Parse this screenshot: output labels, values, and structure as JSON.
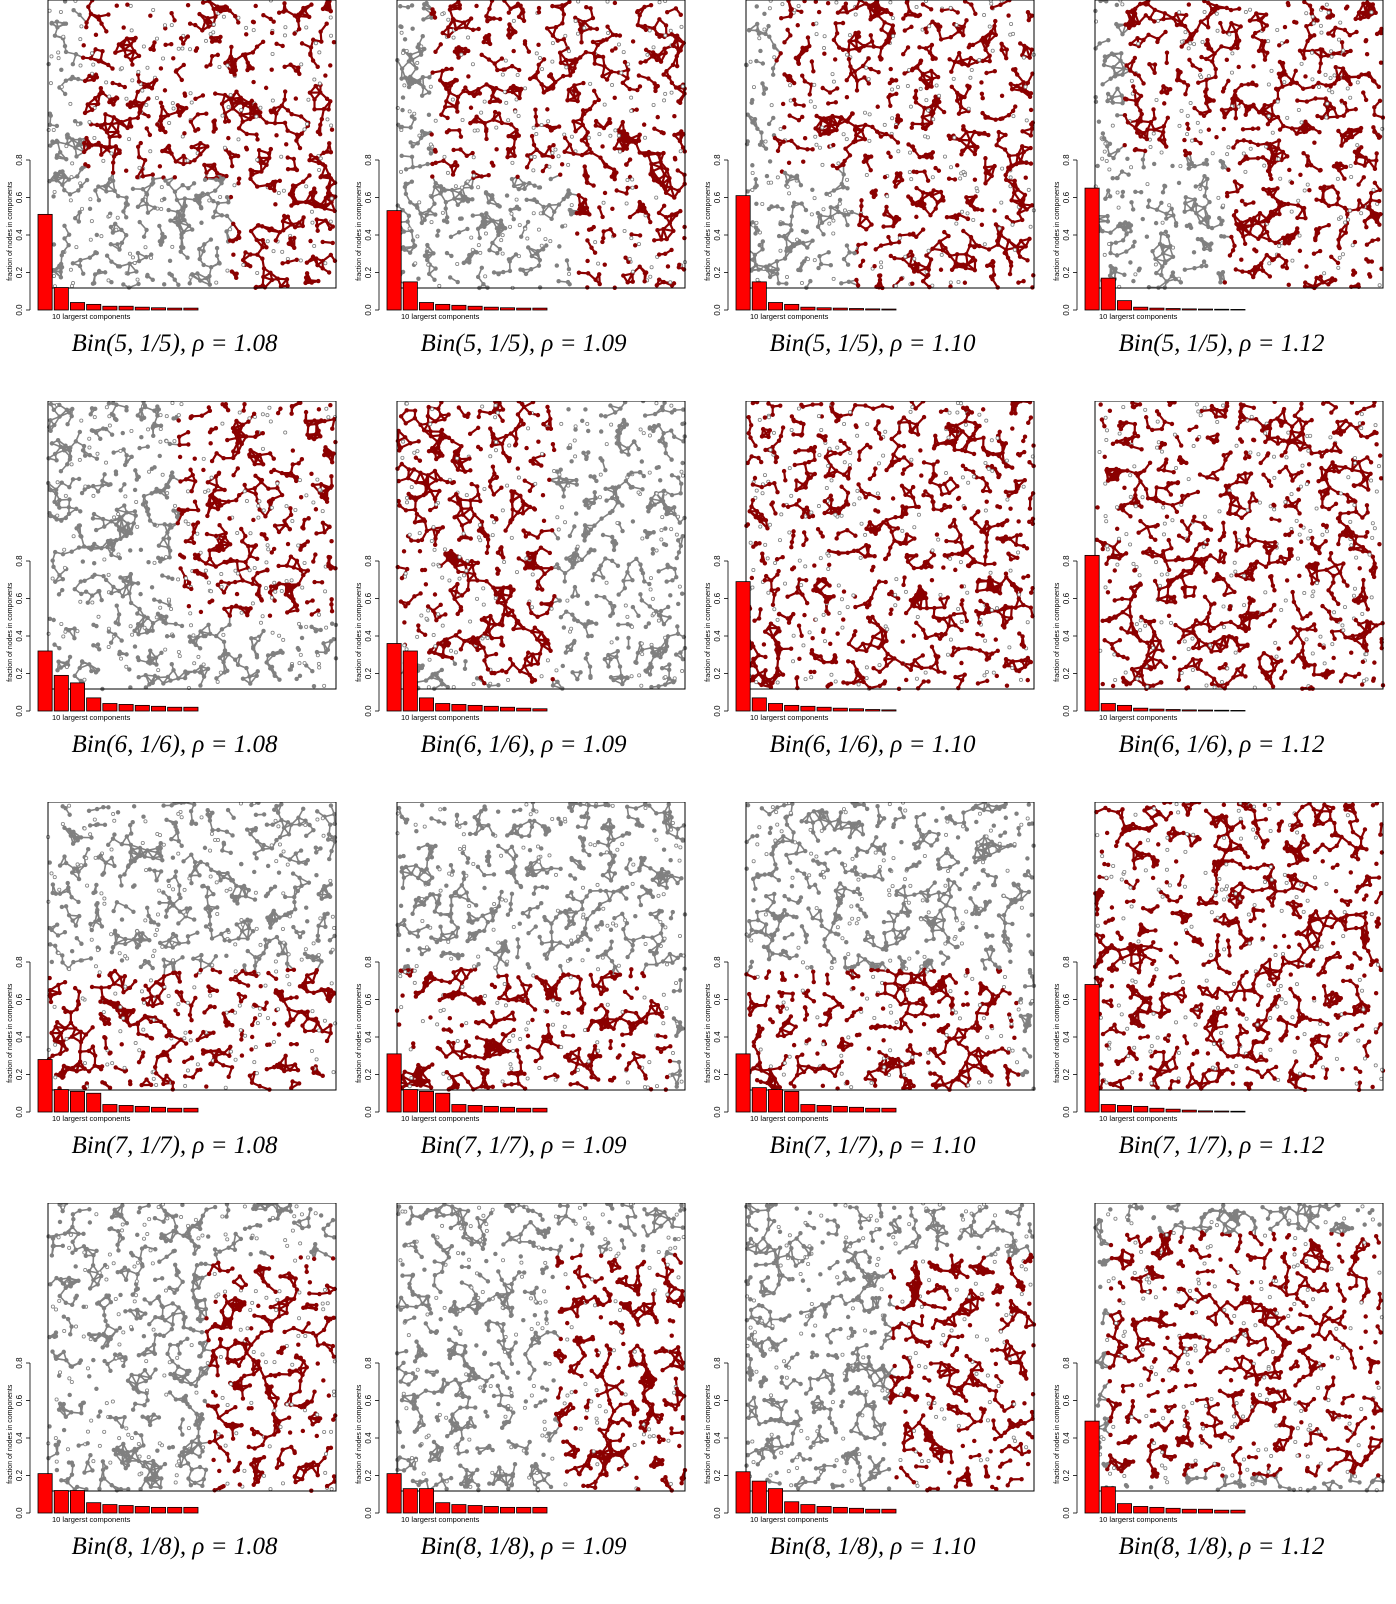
{
  "colors": {
    "giant": "#8b0000",
    "other": "#808080",
    "bar": "#ff0000",
    "frame": "#000000"
  },
  "shared": {
    "ylabel": "fraction of nodes in components",
    "xlabel": "10 largerst components",
    "yticks": [
      "0.0",
      "0.2",
      "0.4",
      "0.6",
      "0.8"
    ]
  },
  "chart_data": [
    {
      "type": "bar",
      "caption": "Bin(5, 1/5), ρ = 1.08",
      "ylim": [
        0,
        0.9
      ],
      "values": [
        0.51,
        0.12,
        0.04,
        0.03,
        0.02,
        0.02,
        0.015,
        0.012,
        0.01,
        0.01
      ]
    },
    {
      "type": "bar",
      "caption": "Bin(5, 1/5), ρ = 1.09",
      "ylim": [
        0,
        0.9
      ],
      "values": [
        0.53,
        0.15,
        0.04,
        0.03,
        0.025,
        0.02,
        0.015,
        0.012,
        0.01,
        0.01
      ]
    },
    {
      "type": "bar",
      "caption": "Bin(5, 1/5), ρ = 1.10",
      "ylim": [
        0,
        0.9
      ],
      "values": [
        0.61,
        0.15,
        0.04,
        0.03,
        0.015,
        0.012,
        0.01,
        0.008,
        0.006,
        0.005
      ]
    },
    {
      "type": "bar",
      "caption": "Bin(5, 1/5), ρ = 1.12",
      "ylim": [
        0,
        0.9
      ],
      "values": [
        0.65,
        0.17,
        0.05,
        0.015,
        0.01,
        0.008,
        0.006,
        0.005,
        0.004,
        0.003
      ]
    },
    {
      "type": "bar",
      "caption": "Bin(6, 1/6), ρ = 1.08",
      "ylim": [
        0,
        0.9
      ],
      "values": [
        0.32,
        0.19,
        0.15,
        0.07,
        0.04,
        0.035,
        0.03,
        0.025,
        0.02,
        0.02
      ]
    },
    {
      "type": "bar",
      "caption": "Bin(6, 1/6), ρ = 1.09",
      "ylim": [
        0,
        0.9
      ],
      "values": [
        0.36,
        0.32,
        0.07,
        0.04,
        0.035,
        0.03,
        0.025,
        0.02,
        0.015,
        0.012
      ]
    },
    {
      "type": "bar",
      "caption": "Bin(6, 1/6), ρ = 1.10",
      "ylim": [
        0,
        0.9
      ],
      "values": [
        0.69,
        0.07,
        0.04,
        0.03,
        0.025,
        0.02,
        0.015,
        0.012,
        0.008,
        0.006
      ]
    },
    {
      "type": "bar",
      "caption": "Bin(6, 1/6), ρ = 1.12",
      "ylim": [
        0,
        0.9
      ],
      "values": [
        0.83,
        0.04,
        0.03,
        0.015,
        0.01,
        0.008,
        0.006,
        0.005,
        0.004,
        0.003
      ]
    },
    {
      "type": "bar",
      "caption": "Bin(7, 1/7), ρ = 1.08",
      "ylim": [
        0,
        0.9
      ],
      "values": [
        0.28,
        0.12,
        0.11,
        0.1,
        0.04,
        0.035,
        0.03,
        0.025,
        0.02,
        0.02
      ]
    },
    {
      "type": "bar",
      "caption": "Bin(7, 1/7), ρ = 1.09",
      "ylim": [
        0,
        0.9
      ],
      "values": [
        0.31,
        0.12,
        0.11,
        0.1,
        0.04,
        0.035,
        0.03,
        0.025,
        0.02,
        0.02
      ]
    },
    {
      "type": "bar",
      "caption": "Bin(7, 1/7), ρ = 1.10",
      "ylim": [
        0,
        0.9
      ],
      "values": [
        0.31,
        0.13,
        0.12,
        0.11,
        0.04,
        0.035,
        0.03,
        0.025,
        0.02,
        0.02
      ]
    },
    {
      "type": "bar",
      "caption": "Bin(7, 1/7), ρ = 1.12",
      "ylim": [
        0,
        0.9
      ],
      "values": [
        0.68,
        0.04,
        0.035,
        0.03,
        0.02,
        0.015,
        0.01,
        0.006,
        0.005,
        0.004
      ]
    },
    {
      "type": "bar",
      "caption": "Bin(8, 1/8), ρ = 1.08",
      "ylim": [
        0,
        0.9
      ],
      "values": [
        0.21,
        0.12,
        0.12,
        0.055,
        0.045,
        0.04,
        0.035,
        0.03,
        0.03,
        0.03
      ]
    },
    {
      "type": "bar",
      "caption": "Bin(8, 1/8), ρ = 1.09",
      "ylim": [
        0,
        0.9
      ],
      "values": [
        0.21,
        0.13,
        0.13,
        0.055,
        0.045,
        0.04,
        0.035,
        0.03,
        0.03,
        0.03
      ]
    },
    {
      "type": "bar",
      "caption": "Bin(8, 1/8), ρ = 1.10",
      "ylim": [
        0,
        0.9
      ],
      "values": [
        0.22,
        0.17,
        0.13,
        0.06,
        0.045,
        0.035,
        0.03,
        0.025,
        0.02,
        0.02
      ]
    },
    {
      "type": "bar",
      "caption": "Bin(8, 1/8), ρ = 1.12",
      "ylim": [
        0,
        0.9
      ],
      "values": [
        0.49,
        0.14,
        0.05,
        0.035,
        0.03,
        0.025,
        0.02,
        0.02,
        0.015,
        0.015
      ]
    }
  ]
}
